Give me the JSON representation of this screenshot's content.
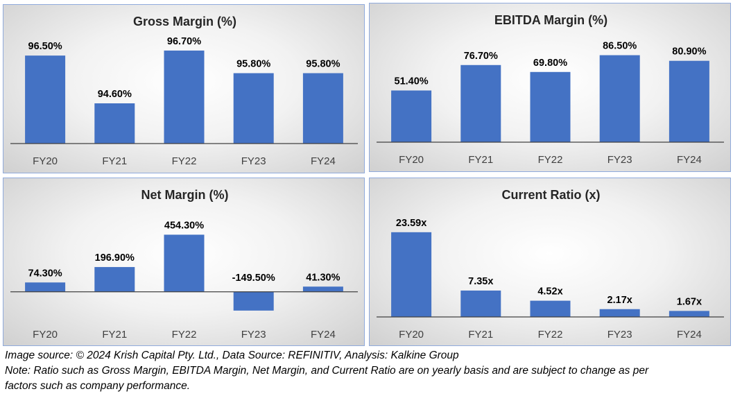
{
  "chart_data": [
    {
      "type": "bar",
      "title": "Gross Margin (%)",
      "categories": [
        "FY20",
        "FY21",
        "FY22",
        "FY23",
        "FY24"
      ],
      "values": [
        96.5,
        94.6,
        96.7,
        95.8,
        95.8
      ],
      "labels": [
        "96.50%",
        "94.60%",
        "96.70%",
        "95.80%",
        "95.80%"
      ],
      "ylim": [
        93.0,
        97.0
      ],
      "color": "#4472c4",
      "grid": false
    },
    {
      "type": "bar",
      "title": "EBITDA Margin (%)",
      "categories": [
        "FY20",
        "FY21",
        "FY22",
        "FY23",
        "FY24"
      ],
      "values": [
        51.4,
        76.7,
        69.8,
        86.5,
        80.9
      ],
      "labels": [
        "51.40%",
        "76.70%",
        "69.80%",
        "86.50%",
        "80.90%"
      ],
      "ylim": [
        0,
        100
      ],
      "color": "#4472c4",
      "grid": false
    },
    {
      "type": "bar",
      "title": "Net Margin (%)",
      "categories": [
        "FY20",
        "FY21",
        "FY22",
        "FY23",
        "FY24"
      ],
      "values": [
        74.3,
        196.9,
        454.3,
        -149.5,
        41.3
      ],
      "labels": [
        "74.30%",
        "196.90%",
        "454.30%",
        "-149.50%",
        "41.30%"
      ],
      "ylim": [
        -200,
        600
      ],
      "color": "#4472c4",
      "grid": false
    },
    {
      "type": "bar",
      "title": "Current Ratio (x)",
      "categories": [
        "FY20",
        "FY21",
        "FY22",
        "FY23",
        "FY24"
      ],
      "values": [
        23.59,
        7.35,
        4.52,
        2.17,
        1.67
      ],
      "labels": [
        "23.59x",
        "7.35x",
        "4.52x",
        "2.17x",
        "1.67x"
      ],
      "ylim": [
        0,
        28
      ],
      "color": "#4472c4",
      "grid": false
    }
  ],
  "footer": {
    "source": "Image source: © 2024 Krish Capital Pty. Ltd., Data Source: REFINITIV, Analysis: Kalkine Group",
    "note_line1": "Note: Ratio such as Gross Margin, EBITDA Margin, Net Margin, and Current Ratio are on yearly basis and are subject to change as per",
    "note_line2": "factors such as company performance."
  }
}
